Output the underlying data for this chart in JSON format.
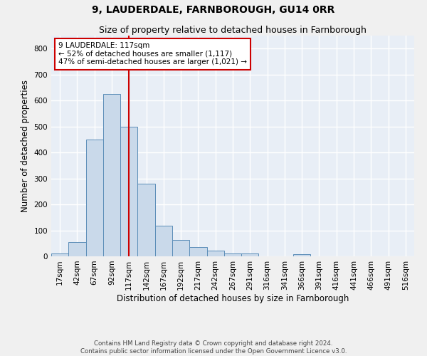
{
  "title1": "9, LAUDERDALE, FARNBOROUGH, GU14 0RR",
  "title2": "Size of property relative to detached houses in Farnborough",
  "xlabel": "Distribution of detached houses by size in Farnborough",
  "ylabel": "Number of detached properties",
  "footer": "Contains HM Land Registry data © Crown copyright and database right 2024.\nContains public sector information licensed under the Open Government Licence v3.0.",
  "bin_labels": [
    "17sqm",
    "42sqm",
    "67sqm",
    "92sqm",
    "117sqm",
    "142sqm",
    "167sqm",
    "192sqm",
    "217sqm",
    "242sqm",
    "267sqm",
    "291sqm",
    "316sqm",
    "341sqm",
    "366sqm",
    "391sqm",
    "416sqm",
    "441sqm",
    "466sqm",
    "491sqm",
    "516sqm"
  ],
  "bar_values": [
    12,
    55,
    450,
    625,
    500,
    280,
    118,
    62,
    35,
    22,
    10,
    10,
    0,
    0,
    8,
    0,
    0,
    0,
    0,
    0,
    0
  ],
  "bar_color": "#c9d9ea",
  "bar_edge_color": "#5b8db8",
  "vline_x_index": 4,
  "annotation_title": "9 LAUDERDALE: 117sqm",
  "annotation_line1": "← 52% of detached houses are smaller (1,117)",
  "annotation_line2": "47% of semi-detached houses are larger (1,021) →",
  "ylim": [
    0,
    850
  ],
  "yticks": [
    0,
    100,
    200,
    300,
    400,
    500,
    600,
    700,
    800
  ],
  "bg_color": "#e8eef6",
  "grid_color": "#ffffff",
  "vline_color": "#cc0000",
  "annotation_box_edge": "#cc0000",
  "fig_bg": "#f0f0f0",
  "title_fontsize": 10,
  "subtitle_fontsize": 9,
  "axis_label_fontsize": 8.5,
  "tick_fontsize": 7.5,
  "annotation_fontsize": 7.5
}
